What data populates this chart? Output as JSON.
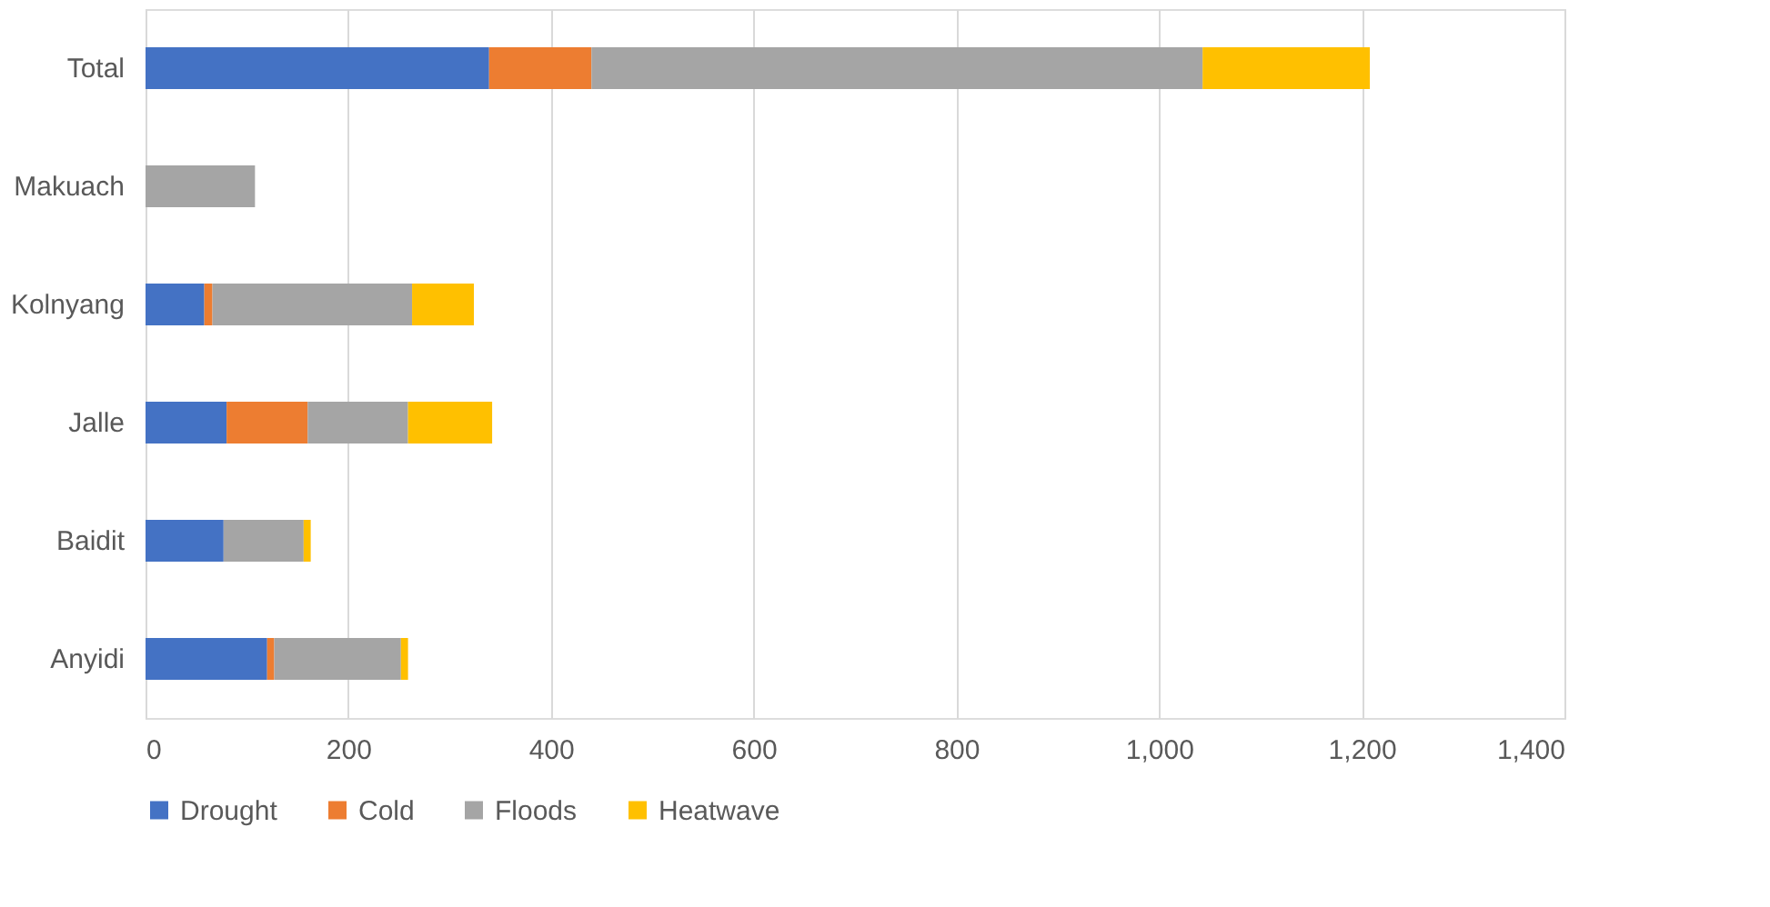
{
  "chart_data": {
    "type": "bar",
    "orientation": "horizontal",
    "stacked": true,
    "categories": [
      "Total",
      "Makuach",
      "Kolnyang",
      "Jalle",
      "Baidit",
      "Anyidi"
    ],
    "series": [
      {
        "name": "Drought",
        "color": "#4472c4",
        "values": [
          339,
          0,
          58,
          80,
          77,
          120
        ]
      },
      {
        "name": "Cold",
        "color": "#ed7d31",
        "values": [
          101,
          0,
          8,
          80,
          0,
          7
        ]
      },
      {
        "name": "Floods",
        "color": "#a5a5a5",
        "values": [
          603,
          108,
          197,
          99,
          79,
          125
        ]
      },
      {
        "name": "Heatwave",
        "color": "#ffc000",
        "values": [
          165,
          0,
          61,
          83,
          7,
          7
        ]
      }
    ],
    "xlim": [
      0,
      1400
    ],
    "xticks": [
      0,
      {
        "value": 200,
        "label": "200"
      },
      {
        "value": 400,
        "label": "400"
      },
      {
        "value": 600,
        "label": "600"
      },
      {
        "value": 800,
        "label": "800"
      },
      {
        "value": 1000,
        "label": "1,000"
      },
      {
        "value": 1200,
        "label": "1,200"
      },
      {
        "value": 1400,
        "label": "1,400"
      }
    ],
    "grid": "x",
    "legend": "bottom"
  }
}
